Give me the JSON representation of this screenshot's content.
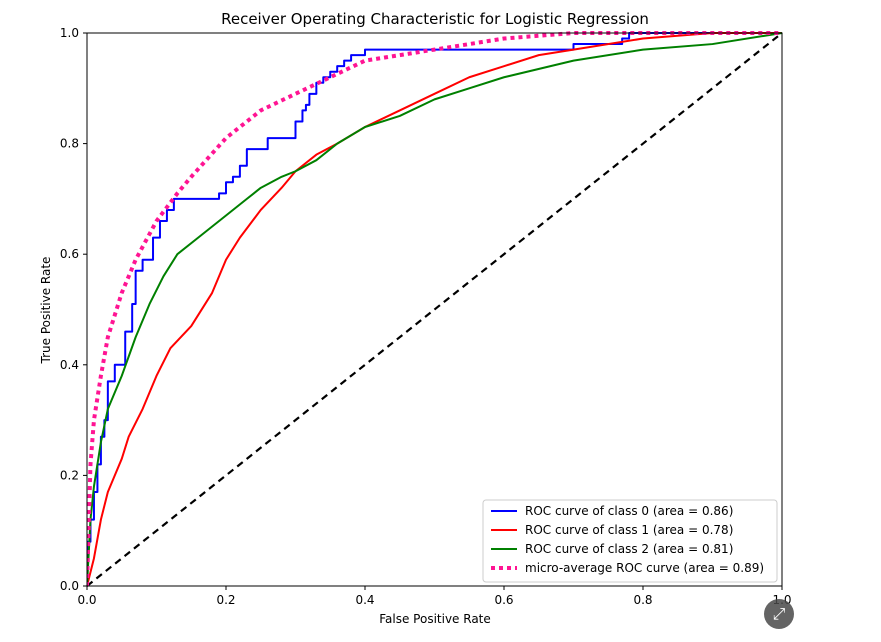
{
  "chart_data": {
    "type": "line",
    "title": "Receiver Operating Characteristic for Logistic Regression",
    "xlabel": "False Positive Rate",
    "ylabel": "True Positive Rate",
    "xlim": [
      0.0,
      1.0
    ],
    "ylim": [
      0.0,
      1.0
    ],
    "x_ticks": [
      "0.0",
      "0.2",
      "0.4",
      "0.6",
      "0.8",
      "1.0"
    ],
    "y_ticks": [
      "0.0",
      "0.2",
      "0.4",
      "0.6",
      "0.8",
      "1.0"
    ],
    "legend_position": "lower-right",
    "series": [
      {
        "name": "ROC curve of class 0 (area = 0.86)",
        "color": "#0000ff",
        "style": "solid",
        "step": true,
        "x": [
          0.0,
          0.005,
          0.01,
          0.015,
          0.02,
          0.025,
          0.03,
          0.04,
          0.055,
          0.065,
          0.07,
          0.08,
          0.095,
          0.105,
          0.115,
          0.125,
          0.14,
          0.19,
          0.2,
          0.21,
          0.22,
          0.23,
          0.24,
          0.26,
          0.3,
          0.31,
          0.315,
          0.32,
          0.33,
          0.34,
          0.35,
          0.36,
          0.37,
          0.38,
          0.4,
          0.42,
          0.45,
          0.5,
          0.6,
          0.7,
          0.71,
          0.77,
          0.78,
          0.85,
          1.0
        ],
        "y": [
          0.0,
          0.08,
          0.12,
          0.17,
          0.22,
          0.27,
          0.3,
          0.37,
          0.4,
          0.46,
          0.51,
          0.57,
          0.59,
          0.63,
          0.66,
          0.68,
          0.7,
          0.7,
          0.71,
          0.73,
          0.74,
          0.76,
          0.79,
          0.79,
          0.81,
          0.84,
          0.86,
          0.87,
          0.89,
          0.91,
          0.92,
          0.93,
          0.94,
          0.95,
          0.96,
          0.97,
          0.97,
          0.97,
          0.97,
          0.97,
          0.98,
          0.98,
          0.99,
          1.0,
          1.0
        ]
      },
      {
        "name": "ROC curve of class 1 (area = 0.78)",
        "color": "#ff0000",
        "style": "solid",
        "step": false,
        "x": [
          0.0,
          0.01,
          0.02,
          0.03,
          0.04,
          0.05,
          0.06,
          0.08,
          0.1,
          0.12,
          0.15,
          0.18,
          0.2,
          0.22,
          0.25,
          0.28,
          0.3,
          0.33,
          0.36,
          0.4,
          0.45,
          0.5,
          0.55,
          0.6,
          0.65,
          0.7,
          0.8,
          0.9,
          1.0
        ],
        "y": [
          0.0,
          0.05,
          0.12,
          0.17,
          0.2,
          0.23,
          0.27,
          0.32,
          0.38,
          0.43,
          0.47,
          0.53,
          0.59,
          0.63,
          0.68,
          0.72,
          0.75,
          0.78,
          0.8,
          0.83,
          0.86,
          0.89,
          0.92,
          0.94,
          0.96,
          0.97,
          0.99,
          1.0,
          1.0
        ]
      },
      {
        "name": "ROC curve of class 2 (area = 0.81)",
        "color": "#008000",
        "style": "solid",
        "step": false,
        "x": [
          0.0,
          0.005,
          0.01,
          0.02,
          0.03,
          0.05,
          0.07,
          0.09,
          0.11,
          0.13,
          0.16,
          0.2,
          0.23,
          0.25,
          0.28,
          0.3,
          0.33,
          0.36,
          0.4,
          0.45,
          0.5,
          0.55,
          0.6,
          0.7,
          0.8,
          0.9,
          1.0
        ],
        "y": [
          0.0,
          0.12,
          0.18,
          0.26,
          0.32,
          0.38,
          0.45,
          0.51,
          0.56,
          0.6,
          0.63,
          0.67,
          0.7,
          0.72,
          0.74,
          0.75,
          0.77,
          0.8,
          0.83,
          0.85,
          0.88,
          0.9,
          0.92,
          0.95,
          0.97,
          0.98,
          1.0
        ]
      },
      {
        "name": "micro-average ROC curve (area = 0.89)",
        "color": "#ff1493",
        "style": "dotted",
        "step": false,
        "x": [
          0.0,
          0.005,
          0.01,
          0.02,
          0.03,
          0.05,
          0.07,
          0.1,
          0.13,
          0.15,
          0.2,
          0.25,
          0.3,
          0.35,
          0.4,
          0.45,
          0.5,
          0.6,
          0.7,
          0.8,
          0.9,
          1.0
        ],
        "y": [
          0.0,
          0.22,
          0.3,
          0.38,
          0.45,
          0.53,
          0.59,
          0.66,
          0.71,
          0.74,
          0.81,
          0.86,
          0.89,
          0.92,
          0.95,
          0.96,
          0.97,
          0.99,
          1.0,
          1.0,
          1.0,
          1.0
        ]
      }
    ],
    "reference_line": {
      "color": "#000000",
      "style": "dashed",
      "x": [
        0.0,
        1.0
      ],
      "y": [
        0.0,
        1.0
      ]
    }
  },
  "ui": {
    "expand_icon": "expand-icon",
    "expand_glyph": "⤢"
  }
}
